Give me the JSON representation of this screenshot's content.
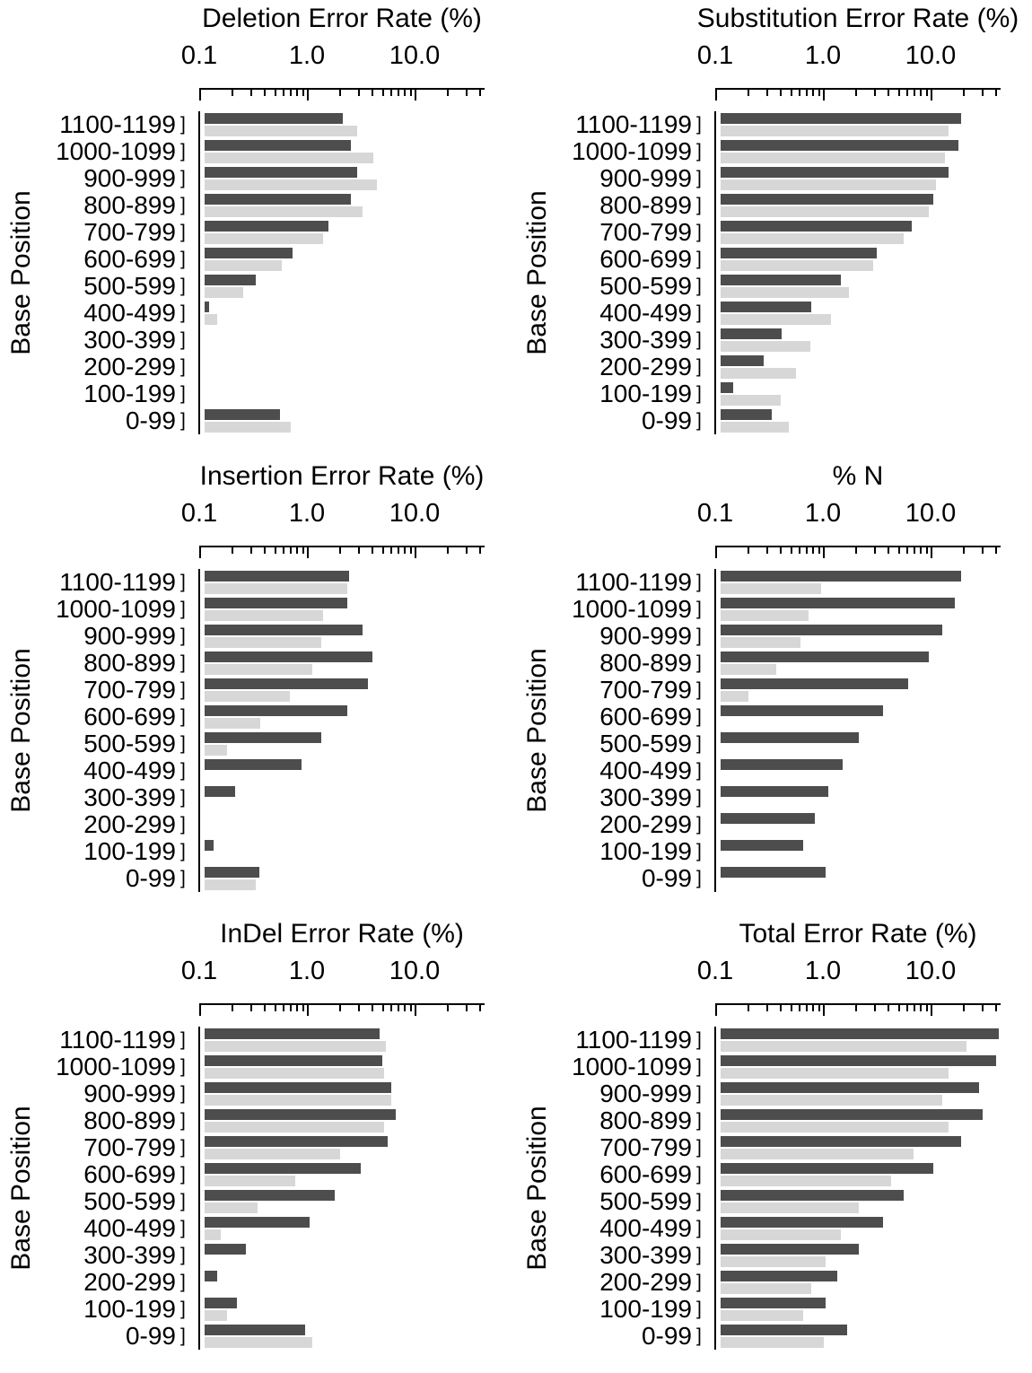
{
  "chart_data": [
    {
      "type": "bar",
      "orientation": "horizontal",
      "title": "Deletion Error Rate (%)",
      "ylabel": "Base Position",
      "xscale": "log",
      "xlim": [
        0.1,
        45
      ],
      "x_major_ticks": [
        {
          "value": 0.1,
          "label": "0.1"
        },
        {
          "value": 1,
          "label": "1.0"
        },
        {
          "value": 10,
          "label": "10.0"
        }
      ],
      "categories": [
        "1100-1199",
        "1000-1099",
        "900-999",
        "800-899",
        "700-799",
        "600-699",
        "500-599",
        "400-499",
        "300-399",
        "200-299",
        "100-199",
        "0-99"
      ],
      "series": [
        {
          "name": "dark-gray",
          "color": "#4d4d4d",
          "values": [
            1.9,
            2.3,
            2.6,
            2.3,
            1.4,
            0.65,
            0.3,
            0.11,
            null,
            null,
            null,
            0.5
          ]
        },
        {
          "name": "light-gray",
          "color": "#d7d7d7",
          "values": [
            2.6,
            3.7,
            4.0,
            2.9,
            1.25,
            0.52,
            0.23,
            0.13,
            null,
            null,
            null,
            0.63
          ]
        }
      ]
    },
    {
      "type": "bar",
      "orientation": "horizontal",
      "title": "Substitution Error Rate (%)",
      "ylabel": "Base Position",
      "xscale": "log",
      "xlim": [
        0.1,
        45
      ],
      "x_major_ticks": [
        {
          "value": 0.1,
          "label": "0.1"
        },
        {
          "value": 1,
          "label": "1.0"
        },
        {
          "value": 10,
          "label": "10.0"
        }
      ],
      "categories": [
        "1100-1199",
        "1000-1099",
        "900-999",
        "800-899",
        "700-799",
        "600-699",
        "500-599",
        "400-499",
        "300-399",
        "200-299",
        "100-199",
        "0-99"
      ],
      "series": [
        {
          "name": "dark-gray",
          "color": "#4d4d4d",
          "values": [
            17,
            16,
            13,
            9.5,
            6.0,
            2.8,
            1.3,
            0.7,
            0.37,
            0.25,
            0.13,
            0.3
          ]
        },
        {
          "name": "light-gray",
          "color": "#d7d7d7",
          "values": [
            13,
            12,
            10,
            8.5,
            5.0,
            2.6,
            1.55,
            1.05,
            0.68,
            0.5,
            0.36,
            0.43
          ]
        }
      ]
    },
    {
      "type": "bar",
      "orientation": "horizontal",
      "title": "Insertion Error Rate (%)",
      "ylabel": "Base Position",
      "xscale": "log",
      "xlim": [
        0.1,
        45
      ],
      "x_major_ticks": [
        {
          "value": 0.1,
          "label": "0.1"
        },
        {
          "value": 1,
          "label": "1.0"
        },
        {
          "value": 10,
          "label": "10.0"
        }
      ],
      "categories": [
        "1100-1199",
        "1000-1099",
        "900-999",
        "800-899",
        "700-799",
        "600-699",
        "500-599",
        "400-499",
        "300-399",
        "200-299",
        "100-199",
        "0-99"
      ],
      "series": [
        {
          "name": "dark-gray",
          "color": "#4d4d4d",
          "values": [
            2.2,
            2.1,
            2.9,
            3.6,
            3.3,
            2.1,
            1.2,
            0.8,
            0.19,
            null,
            0.12,
            0.32
          ]
        },
        {
          "name": "light-gray",
          "color": "#d7d7d7",
          "values": [
            2.1,
            1.25,
            1.2,
            1.0,
            0.62,
            0.33,
            0.16,
            null,
            null,
            null,
            null,
            0.3
          ]
        }
      ]
    },
    {
      "type": "bar",
      "orientation": "horizontal",
      "title": "% N",
      "ylabel": "Base Position",
      "xscale": "log",
      "xlim": [
        0.1,
        45
      ],
      "x_major_ticks": [
        {
          "value": 0.1,
          "label": "0.1"
        },
        {
          "value": 1,
          "label": "1.0"
        },
        {
          "value": 10,
          "label": "10.0"
        }
      ],
      "categories": [
        "1100-1199",
        "1000-1099",
        "900-999",
        "800-899",
        "700-799",
        "600-699",
        "500-599",
        "400-499",
        "300-399",
        "200-299",
        "100-199",
        "0-99"
      ],
      "series": [
        {
          "name": "dark-gray",
          "color": "#4d4d4d",
          "values": [
            17,
            15,
            11.5,
            8.5,
            5.5,
            3.2,
            1.9,
            1.35,
            1.0,
            0.75,
            0.58,
            0.95
          ]
        },
        {
          "name": "light-gray",
          "color": "#d7d7d7",
          "values": [
            0.85,
            0.65,
            0.55,
            0.33,
            0.18,
            null,
            null,
            null,
            null,
            null,
            null,
            null
          ]
        }
      ]
    },
    {
      "type": "bar",
      "orientation": "horizontal",
      "title": "InDel Error Rate (%)",
      "ylabel": "Base Position",
      "xscale": "log",
      "xlim": [
        0.1,
        45
      ],
      "x_major_ticks": [
        {
          "value": 0.1,
          "label": "0.1"
        },
        {
          "value": 1,
          "label": "1.0"
        },
        {
          "value": 10,
          "label": "10.0"
        }
      ],
      "categories": [
        "1100-1199",
        "1000-1099",
        "900-999",
        "800-899",
        "700-799",
        "600-699",
        "500-599",
        "400-499",
        "300-399",
        "200-299",
        "100-199",
        "0-99"
      ],
      "series": [
        {
          "name": "dark-gray",
          "color": "#4d4d4d",
          "values": [
            4.2,
            4.5,
            5.4,
            6.0,
            5.0,
            2.8,
            1.6,
            0.95,
            0.24,
            0.13,
            0.2,
            0.85
          ]
        },
        {
          "name": "light-gray",
          "color": "#d7d7d7",
          "values": [
            4.8,
            4.6,
            5.4,
            4.6,
            1.8,
            0.7,
            0.31,
            0.14,
            null,
            null,
            0.16,
            1.0
          ]
        }
      ]
    },
    {
      "type": "bar",
      "orientation": "horizontal",
      "title": "Total Error Rate (%)",
      "ylabel": "Base Position",
      "xscale": "log",
      "xlim": [
        0.1,
        45
      ],
      "x_major_ticks": [
        {
          "value": 0.1,
          "label": "0.1"
        },
        {
          "value": 1,
          "label": "1.0"
        },
        {
          "value": 10,
          "label": "10.0"
        }
      ],
      "categories": [
        "1100-1199",
        "1000-1099",
        "900-999",
        "800-899",
        "700-799",
        "600-699",
        "500-599",
        "400-499",
        "300-399",
        "200-299",
        "100-199",
        "0-99"
      ],
      "series": [
        {
          "name": "dark-gray",
          "color": "#4d4d4d",
          "values": [
            38,
            36,
            25,
            27,
            17,
            9.5,
            5.0,
            3.2,
            1.9,
            1.2,
            0.95,
            1.5
          ]
        },
        {
          "name": "light-gray",
          "color": "#d7d7d7",
          "values": [
            19,
            13,
            11.5,
            13,
            6.2,
            3.8,
            1.9,
            1.3,
            0.95,
            0.7,
            0.58,
            0.9
          ]
        }
      ]
    }
  ]
}
